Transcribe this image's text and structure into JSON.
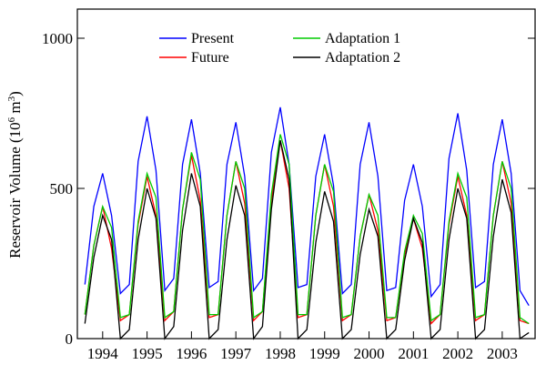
{
  "chart_data": {
    "type": "line",
    "y_label": {
      "start": "Reservoir Volume (10",
      "sup1": "6",
      "mid": " m",
      "sup2": "3",
      "end": ")"
    },
    "x": [
      1993.6,
      1993.8,
      1994,
      1994.2,
      1994.4,
      1994.6,
      1994.8,
      1995,
      1995.2,
      1995.4,
      1995.6,
      1995.8,
      1996,
      1996.2,
      1996.4,
      1996.6,
      1996.8,
      1997,
      1997.2,
      1997.4,
      1997.6,
      1997.8,
      1998,
      1998.2,
      1998.4,
      1998.6,
      1998.8,
      1999,
      1999.2,
      1999.4,
      1999.6,
      1999.8,
      2000,
      2000.2,
      2000.4,
      2000.6,
      2000.8,
      2001,
      2001.2,
      2001.4,
      2001.6,
      2001.8,
      2002,
      2002.2,
      2002.4,
      2002.6,
      2002.8,
      2003,
      2003.2,
      2003.4,
      2003.6
    ],
    "series": [
      {
        "name": "Present",
        "color": "#0000ff",
        "values": [
          180,
          440,
          550,
          410,
          150,
          180,
          590,
          740,
          560,
          160,
          200,
          580,
          730,
          550,
          170,
          190,
          580,
          720,
          540,
          160,
          200,
          620,
          770,
          580,
          170,
          180,
          540,
          680,
          510,
          150,
          180,
          580,
          720,
          540,
          160,
          170,
          460,
          580,
          440,
          140,
          180,
          600,
          750,
          560,
          170,
          190,
          580,
          730,
          550,
          160,
          110
        ]
      },
      {
        "name": "Future",
        "color": "#ff0000",
        "values": [
          80,
          310,
          440,
          300,
          60,
          80,
          380,
          540,
          410,
          60,
          90,
          430,
          610,
          460,
          70,
          80,
          410,
          590,
          450,
          60,
          90,
          460,
          660,
          500,
          70,
          80,
          410,
          580,
          440,
          60,
          80,
          340,
          480,
          360,
          60,
          70,
          280,
          400,
          300,
          50,
          80,
          380,
          540,
          410,
          60,
          80,
          410,
          590,
          450,
          60,
          50
        ]
      },
      {
        "name": "Adaptation 1",
        "color": "#00cc00",
        "values": [
          80,
          310,
          440,
          370,
          70,
          80,
          390,
          550,
          470,
          70,
          90,
          430,
          620,
          530,
          80,
          80,
          410,
          590,
          500,
          70,
          90,
          480,
          680,
          580,
          80,
          80,
          410,
          580,
          490,
          70,
          80,
          340,
          480,
          410,
          70,
          70,
          290,
          410,
          350,
          60,
          80,
          390,
          550,
          470,
          70,
          80,
          410,
          590,
          500,
          70,
          50
        ]
      },
      {
        "name": "Adaptation 2",
        "color": "#000000",
        "values": [
          50,
          270,
          410,
          330,
          0,
          30,
          330,
          500,
          400,
          0,
          40,
          360,
          550,
          440,
          0,
          30,
          330,
          510,
          410,
          0,
          40,
          430,
          660,
          530,
          0,
          30,
          320,
          490,
          390,
          0,
          30,
          280,
          430,
          340,
          0,
          30,
          260,
          400,
          320,
          0,
          30,
          330,
          500,
          400,
          0,
          30,
          340,
          530,
          420,
          0,
          20
        ]
      }
    ],
    "xlim": [
      1993.43,
      2003.74
    ],
    "xticks": [
      1994,
      1995,
      1996,
      1997,
      1998,
      1999,
      2000,
      2001,
      2002,
      2003
    ],
    "ylim": [
      0,
      1097
    ],
    "yticks": [
      0,
      500,
      1000
    ]
  }
}
